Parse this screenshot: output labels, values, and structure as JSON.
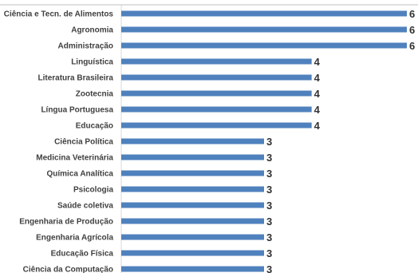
{
  "chart_data": {
    "type": "bar",
    "orientation": "horizontal",
    "categories": [
      "Ciência e Tecn. de Alimentos",
      "Agronomia",
      "Administração",
      "Linguística",
      "Literatura Brasileira",
      "Zootecnia",
      "Língua Portuguesa",
      "Educação",
      "Ciência Política",
      "Medicina Veterinária",
      "Química Analítica",
      "Psicologia",
      "Saúde coletiva",
      "Engenharia de Produção",
      "Engenharia Agrícola",
      "Educação Física",
      "Ciência da Computação"
    ],
    "values": [
      6,
      6,
      6,
      4,
      4,
      4,
      4,
      4,
      3,
      3,
      3,
      3,
      3,
      3,
      3,
      3,
      3
    ],
    "xlim": [
      0,
      6
    ],
    "grid": false,
    "bar_color": "#4f81bd",
    "data_labels": true
  }
}
